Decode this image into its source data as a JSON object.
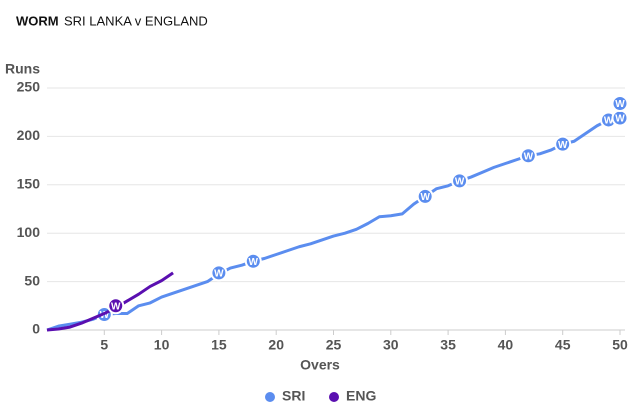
{
  "chart_data": {
    "type": "line",
    "title": "WORM",
    "subtitle": "SRI LANKA v ENGLAND",
    "x_label": "Overs",
    "y_label": "Runs",
    "x": [
      0,
      1,
      2,
      3,
      4,
      5,
      6,
      7,
      8,
      9,
      10,
      11,
      12,
      13,
      14,
      15,
      16,
      17,
      18,
      19,
      20,
      21,
      22,
      23,
      24,
      25,
      26,
      27,
      28,
      29,
      30,
      31,
      32,
      33,
      34,
      35,
      36,
      37,
      38,
      39,
      40,
      41,
      42,
      43,
      44,
      45,
      46,
      47,
      48,
      49,
      50
    ],
    "xlim": [
      0,
      50
    ],
    "xticks": [
      5,
      10,
      15,
      20,
      25,
      30,
      35,
      40,
      45,
      50
    ],
    "ylim": [
      0,
      250
    ],
    "yticks": [
      0,
      50,
      100,
      150,
      200,
      250
    ],
    "grid": true,
    "legend": "bottom",
    "wicket_label": "W",
    "series": [
      {
        "name": "SRI",
        "color": "#5b8def",
        "values": [
          0,
          4,
          6,
          8,
          11,
          16,
          17,
          17,
          25,
          28,
          34,
          38,
          42,
          46,
          50,
          58,
          64,
          67,
          71,
          74,
          78,
          82,
          86,
          89,
          93,
          97,
          100,
          104,
          110,
          117,
          118,
          120,
          130,
          138,
          146,
          149,
          154,
          158,
          163,
          168,
          172,
          176,
          180,
          182,
          186,
          192,
          195,
          203,
          211,
          217,
          219
        ],
        "wickets": {
          "x": [
            5,
            15,
            18,
            33,
            36,
            42,
            45,
            49,
            50,
            50
          ],
          "y": [
            16,
            59,
            71,
            138,
            154,
            180,
            192,
            217,
            219,
            234
          ]
        }
      },
      {
        "name": "ENG",
        "color": "#5a0fb0",
        "values": [
          0,
          1,
          3,
          7,
          12,
          17,
          23,
          30,
          37,
          45,
          51,
          59,
          null,
          null,
          null,
          null,
          null,
          null,
          null,
          null,
          null,
          null,
          null,
          null,
          null,
          null,
          null,
          null,
          null,
          null,
          null,
          null,
          null,
          null,
          null,
          null,
          null,
          null,
          null,
          null,
          null,
          null,
          null,
          null,
          null,
          null,
          null,
          null,
          null,
          null,
          null
        ],
        "wickets": {
          "x": [
            6
          ],
          "y": [
            25
          ]
        }
      }
    ]
  }
}
